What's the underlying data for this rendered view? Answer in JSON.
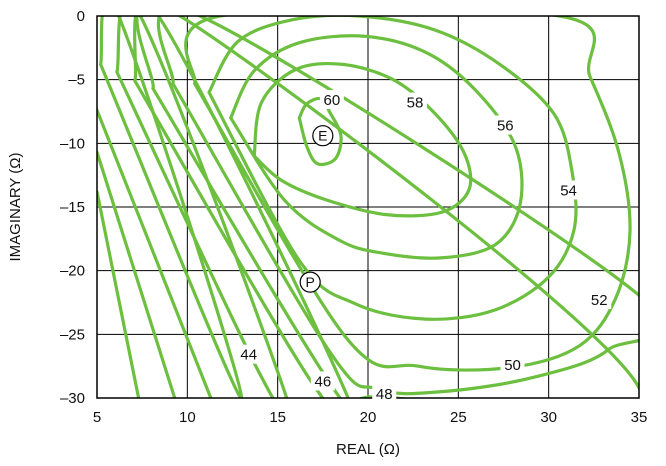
{
  "chart_data": {
    "type": "contour",
    "xlabel": "REAL (Ω)",
    "ylabel": "IMAGINARY (Ω)",
    "xlim": [
      5,
      35
    ],
    "ylim": [
      -30,
      0
    ],
    "x_ticks": [
      "5",
      "10",
      "15",
      "20",
      "25",
      "30",
      "35"
    ],
    "y_ticks": [
      "0",
      "–5",
      "–10",
      "–15",
      "–20",
      "–25",
      "–30"
    ],
    "x_tick_values": [
      5,
      10,
      15,
      20,
      25,
      30,
      35
    ],
    "y_tick_values": [
      0,
      -5,
      -10,
      -15,
      -20,
      -25,
      -30
    ],
    "grid": true,
    "line_color": "#6cbf3f",
    "grid_color": "#000000",
    "contours": [
      {
        "level": "60",
        "label_at": [
          18.0,
          -6.6
        ],
        "points": [
          [
            16.2,
            -8.0
          ],
          [
            16.6,
            -6.9
          ],
          [
            17.4,
            -6.5
          ],
          [
            17.9,
            -7.6
          ],
          [
            18.5,
            -9.4
          ],
          [
            18.2,
            -11.2
          ],
          [
            17.2,
            -11.6
          ],
          [
            16.6,
            -10.2
          ],
          [
            16.2,
            -8.0
          ]
        ]
      },
      {
        "level": "58",
        "label_at": [
          22.6,
          -6.8
        ],
        "points": [
          [
            13.7,
            -11.0
          ],
          [
            14.1,
            -6.8
          ],
          [
            16.0,
            -4.2
          ],
          [
            18.6,
            -3.8
          ],
          [
            21.4,
            -5.0
          ],
          [
            23.6,
            -7.5
          ],
          [
            25.3,
            -10.7
          ],
          [
            25.6,
            -13.6
          ],
          [
            24.1,
            -15.4
          ],
          [
            21.0,
            -15.6
          ],
          [
            17.6,
            -14.4
          ],
          [
            15.2,
            -12.9
          ],
          [
            13.7,
            -11.0
          ]
        ]
      },
      {
        "level": "56",
        "label_at": [
          27.6,
          -8.6
        ],
        "points": [
          [
            12.4,
            -8.0
          ],
          [
            13.7,
            -4.3
          ],
          [
            16.2,
            -2.1
          ],
          [
            19.9,
            -1.6
          ],
          [
            23.4,
            -3.0
          ],
          [
            26.2,
            -6.2
          ],
          [
            28.2,
            -10.4
          ],
          [
            28.4,
            -14.9
          ],
          [
            27.0,
            -18.0
          ],
          [
            24.0,
            -19.0
          ],
          [
            20.7,
            -18.6
          ],
          [
            18.4,
            -17.6
          ],
          [
            15.4,
            -14.5
          ],
          [
            12.4,
            -8.0
          ]
        ]
      },
      {
        "level": "54",
        "label_at": [
          31.1,
          -13.7
        ],
        "points": [
          [
            11.2,
            -6.0
          ],
          [
            12.8,
            -2.0
          ],
          [
            15.8,
            -0.3
          ],
          [
            19.5,
            0.0
          ],
          [
            23.7,
            -1.1
          ],
          [
            27.3,
            -3.8
          ],
          [
            30.3,
            -7.7
          ],
          [
            31.3,
            -12.3
          ],
          [
            31.4,
            -16.8
          ],
          [
            30.0,
            -20.5
          ],
          [
            27.0,
            -23.1
          ],
          [
            23.2,
            -23.8
          ],
          [
            19.3,
            -22.6
          ],
          [
            16.2,
            -19.2
          ],
          [
            11.2,
            -6.0
          ]
        ]
      },
      {
        "level": "52",
        "label_at": [
          32.8,
          -22.3
        ],
        "points": [
          [
            10.4,
            -5.3
          ],
          [
            11.8,
            0.0
          ],
          [
            30.6,
            0.0
          ],
          [
            32.3,
            -4.8
          ],
          [
            33.9,
            -10.8
          ],
          [
            34.5,
            -16.9
          ],
          [
            33.7,
            -22.2
          ],
          [
            31.7,
            -25.9
          ],
          [
            27.9,
            -27.6
          ],
          [
            22.8,
            -27.5
          ],
          [
            18.7,
            -25.1
          ],
          [
            10.4,
            -5.3
          ]
        ]
      },
      {
        "level": "50",
        "label_at": [
          28.0,
          -27.4
        ],
        "points": [
          [
            9.2,
            -5.3
          ],
          [
            10.7,
            0.0
          ],
          [
            34.8,
            -21.7
          ],
          [
            33.3,
            -26.2
          ],
          [
            29.1,
            -28.4
          ],
          [
            24.1,
            -29.5
          ],
          [
            20.6,
            -29.3
          ],
          [
            17.8,
            -26.2
          ],
          [
            9.2,
            -5.3
          ]
        ]
      },
      {
        "level": "48",
        "label_at": [
          20.9,
          -29.7
        ],
        "points": [
          [
            8.1,
            -5.7
          ],
          [
            9.6,
            0.0
          ],
          [
            35.0,
            -29.2
          ],
          [
            20.3,
            -29.9
          ],
          [
            18.4,
            -29.9
          ],
          [
            8.1,
            -5.7
          ]
        ]
      },
      {
        "level": "46",
        "label_at": [
          17.5,
          -28.7
        ],
        "points": [
          [
            7.1,
            -5.1
          ],
          [
            8.4,
            0.0
          ],
          [
            18.9,
            -30.0
          ],
          [
            16.9,
            -28.8
          ],
          [
            7.1,
            -5.1
          ]
        ]
      },
      {
        "level": "44",
        "label_at": [
          13.4,
          -26.6
        ],
        "points": [
          [
            6.1,
            -4.4
          ],
          [
            7.4,
            0.0
          ],
          [
            15.5,
            -30.0
          ],
          [
            13.9,
            -27.8
          ],
          [
            6.1,
            -4.4
          ]
        ]
      },
      {
        "level": "",
        "label_at": null,
        "points": [
          [
            5.2,
            -3.8
          ],
          [
            6.2,
            0.0
          ],
          [
            13.0,
            -30.0
          ],
          [
            5.2,
            -3.8
          ]
        ]
      },
      {
        "level": "",
        "label_at": null,
        "points": [
          [
            5.0,
            -7.4
          ],
          [
            5.0,
            -7.4
          ],
          [
            11.3,
            -30.0
          ],
          [
            5.0,
            -7.4
          ]
        ]
      },
      {
        "level": "",
        "label_at": null,
        "points": [
          [
            5.0,
            -10.7
          ],
          [
            9.3,
            -30.0
          ],
          [
            5.0,
            -10.7
          ]
        ]
      },
      {
        "level": "",
        "label_at": null,
        "points": [
          [
            5.0,
            -13.8
          ],
          [
            7.3,
            -30.0
          ],
          [
            5.0,
            -13.8
          ]
        ]
      }
    ],
    "markers": [
      {
        "label": "E",
        "x": 17.5,
        "y": -9.4
      },
      {
        "label": "P",
        "x": 16.8,
        "y": -20.9
      }
    ]
  }
}
